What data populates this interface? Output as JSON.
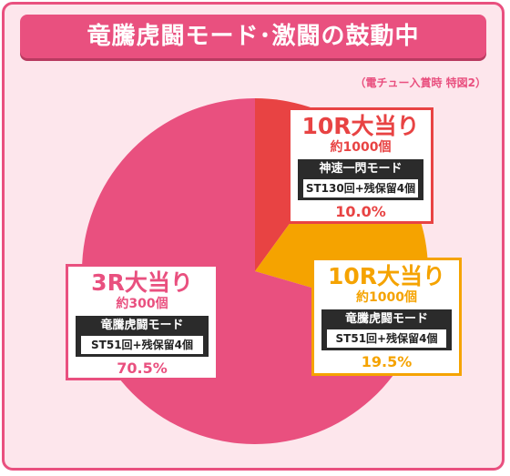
{
  "title": "竜騰虎闘モード･激闘の鼓動中",
  "note": "（電チュー入賞時 特図2）",
  "chart_data": {
    "type": "pie",
    "title": "竜騰虎闘モード･激闘の鼓動中",
    "slices": [
      {
        "label": "10R大当り",
        "sub": "約1000個",
        "mode": "神速一閃モード",
        "st": "ST130回+残保留4個",
        "value": 10.0,
        "value_label": "10.0%",
        "color": "#e84343"
      },
      {
        "label": "10R大当り",
        "sub": "約1000個",
        "mode": "竜騰虎闘モード",
        "st": "ST51回+残保留4個",
        "value": 19.5,
        "value_label": "19.5%",
        "color": "#f5a300"
      },
      {
        "label": "3R大当り",
        "sub": "約300個",
        "mode": "竜騰虎闘モード",
        "st": "ST51回+残保留4個",
        "value": 70.5,
        "value_label": "70.5%",
        "color": "#e9507f"
      }
    ]
  }
}
